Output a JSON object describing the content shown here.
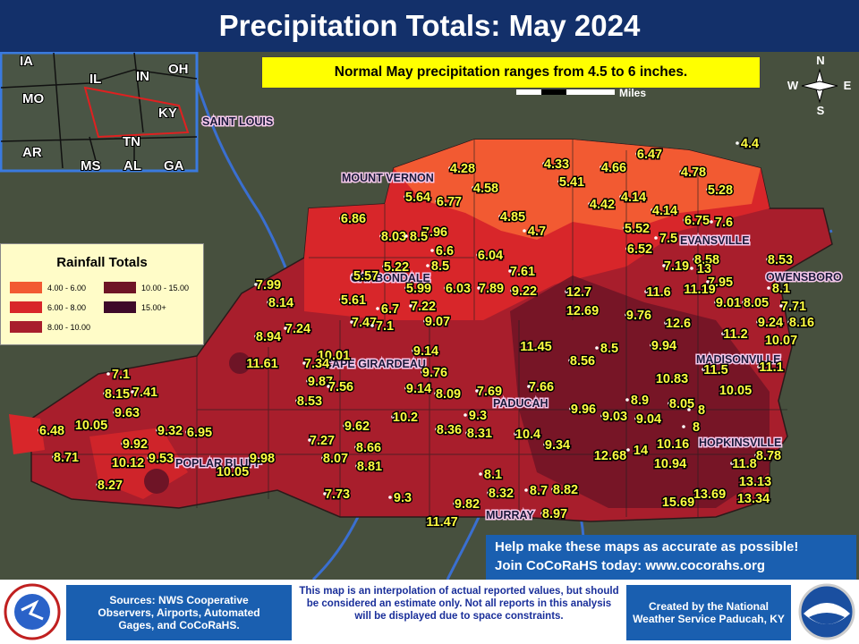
{
  "header": {
    "title": "Precipitation Totals: May 2024"
  },
  "note": "Normal May precipitation ranges from 4.5 to 6 inches.",
  "scale_label": "Miles",
  "compass": [
    "N",
    "W",
    "E",
    "S"
  ],
  "states": [
    "IA",
    "IL",
    "IN",
    "OH",
    "MO",
    "KY",
    "AR",
    "TN",
    "MS",
    "AL",
    "GA"
  ],
  "cities": [
    "SAINT LOUIS",
    "MOUNT VERNON",
    "CARBONDALE",
    "CAPE GIRARDEAU",
    "POPLAR BLUFF",
    "PADUCAH",
    "MURRAY",
    "EVANSVILLE",
    "OWENSBORO",
    "MADISONVILLE",
    "HOPKINSVILLE"
  ],
  "legend": {
    "title": "Rainfall Totals",
    "items": [
      {
        "label": "4.00 - 6.00",
        "color": "#f25a32"
      },
      {
        "label": "6.00 - 8.00",
        "color": "#d8262a"
      },
      {
        "label": "8.00 - 10.00",
        "color": "#a81e2c"
      },
      {
        "label": "10.00 - 15.00",
        "color": "#6e1426"
      },
      {
        "label": "15.00+",
        "color": "#3e0a2a"
      }
    ]
  },
  "rain_labels": [
    "4.4",
    "6.47",
    "4.33",
    "4.66",
    "4.28",
    "4.78",
    "5.41",
    "4.58",
    "5.28",
    "5.64",
    "6.77",
    "4.42",
    "4.14",
    "4.14",
    "4.85",
    "6.86",
    "5.52",
    "6.75",
    "7.6",
    "7.96",
    "4.7",
    "8.03",
    "8.5",
    "7.5",
    "6.52",
    "6.6",
    "6.04",
    "8.58",
    "8.53",
    "7.19",
    "13",
    "5.22",
    "8.5",
    "7.61",
    "7.99",
    "5.57",
    "7.95",
    "8.1",
    "5.99",
    "6.03",
    "7.89",
    "9.22",
    "12.7",
    "11.6",
    "11.19",
    "8.14",
    "5.61",
    "6.7",
    "7.22",
    "9.01",
    "8.05",
    "7.71",
    "12.69",
    "9.76",
    "7.47",
    "7.1",
    "9.07",
    "12.6",
    "9.24",
    "8.16",
    "8.94",
    "7.24",
    "11.2",
    "10.07",
    "11.45",
    "8.5",
    "9.94",
    "10.01",
    "9.14",
    "11.61",
    "7.34",
    "8.56",
    "11.5",
    "11.1",
    "10.83",
    "7.1",
    "9.87",
    "9.76",
    "8.15",
    "7.41",
    "7.56",
    "9.14",
    "8.09",
    "7.69",
    "7.66",
    "10.05",
    "9.63",
    "8.53",
    "8.9",
    "8.05",
    "8",
    "10.2",
    "9.3",
    "9.96",
    "9.03",
    "9.04",
    "6.48",
    "10.05",
    "9.62",
    "8.36",
    "8.31",
    "8",
    "9.32",
    "6.95",
    "10.4",
    "9.92",
    "7.27",
    "8.66",
    "9.34",
    "14",
    "10.16",
    "8.71",
    "10.12",
    "9.53",
    "9.98",
    "8.07",
    "8.81",
    "12.68",
    "8.78",
    "10.05",
    "10.94",
    "11.8",
    "8.1",
    "8.27",
    "13.13",
    "8.32",
    "8.7",
    "8.82",
    "7.73",
    "9.3",
    "9.82",
    "13.69",
    "13.34",
    "15.69",
    "8.97",
    "11.47"
  ],
  "help": [
    "Help make these maps as accurate as possible!",
    "Join CoCoRaHS today: www.cocorahs.org"
  ],
  "footer": {
    "sources": "Sources: NWS Cooperative Observers, Airports, Automated Gages, and CoCoRaHS.",
    "disclaimer": "This map is an interpolation of actual reported values, but should be considered an estimate only. Not all reports in this analysis will be displayed due to space constraints.",
    "credit": "Created by the National Weather Service Paducah, KY"
  }
}
